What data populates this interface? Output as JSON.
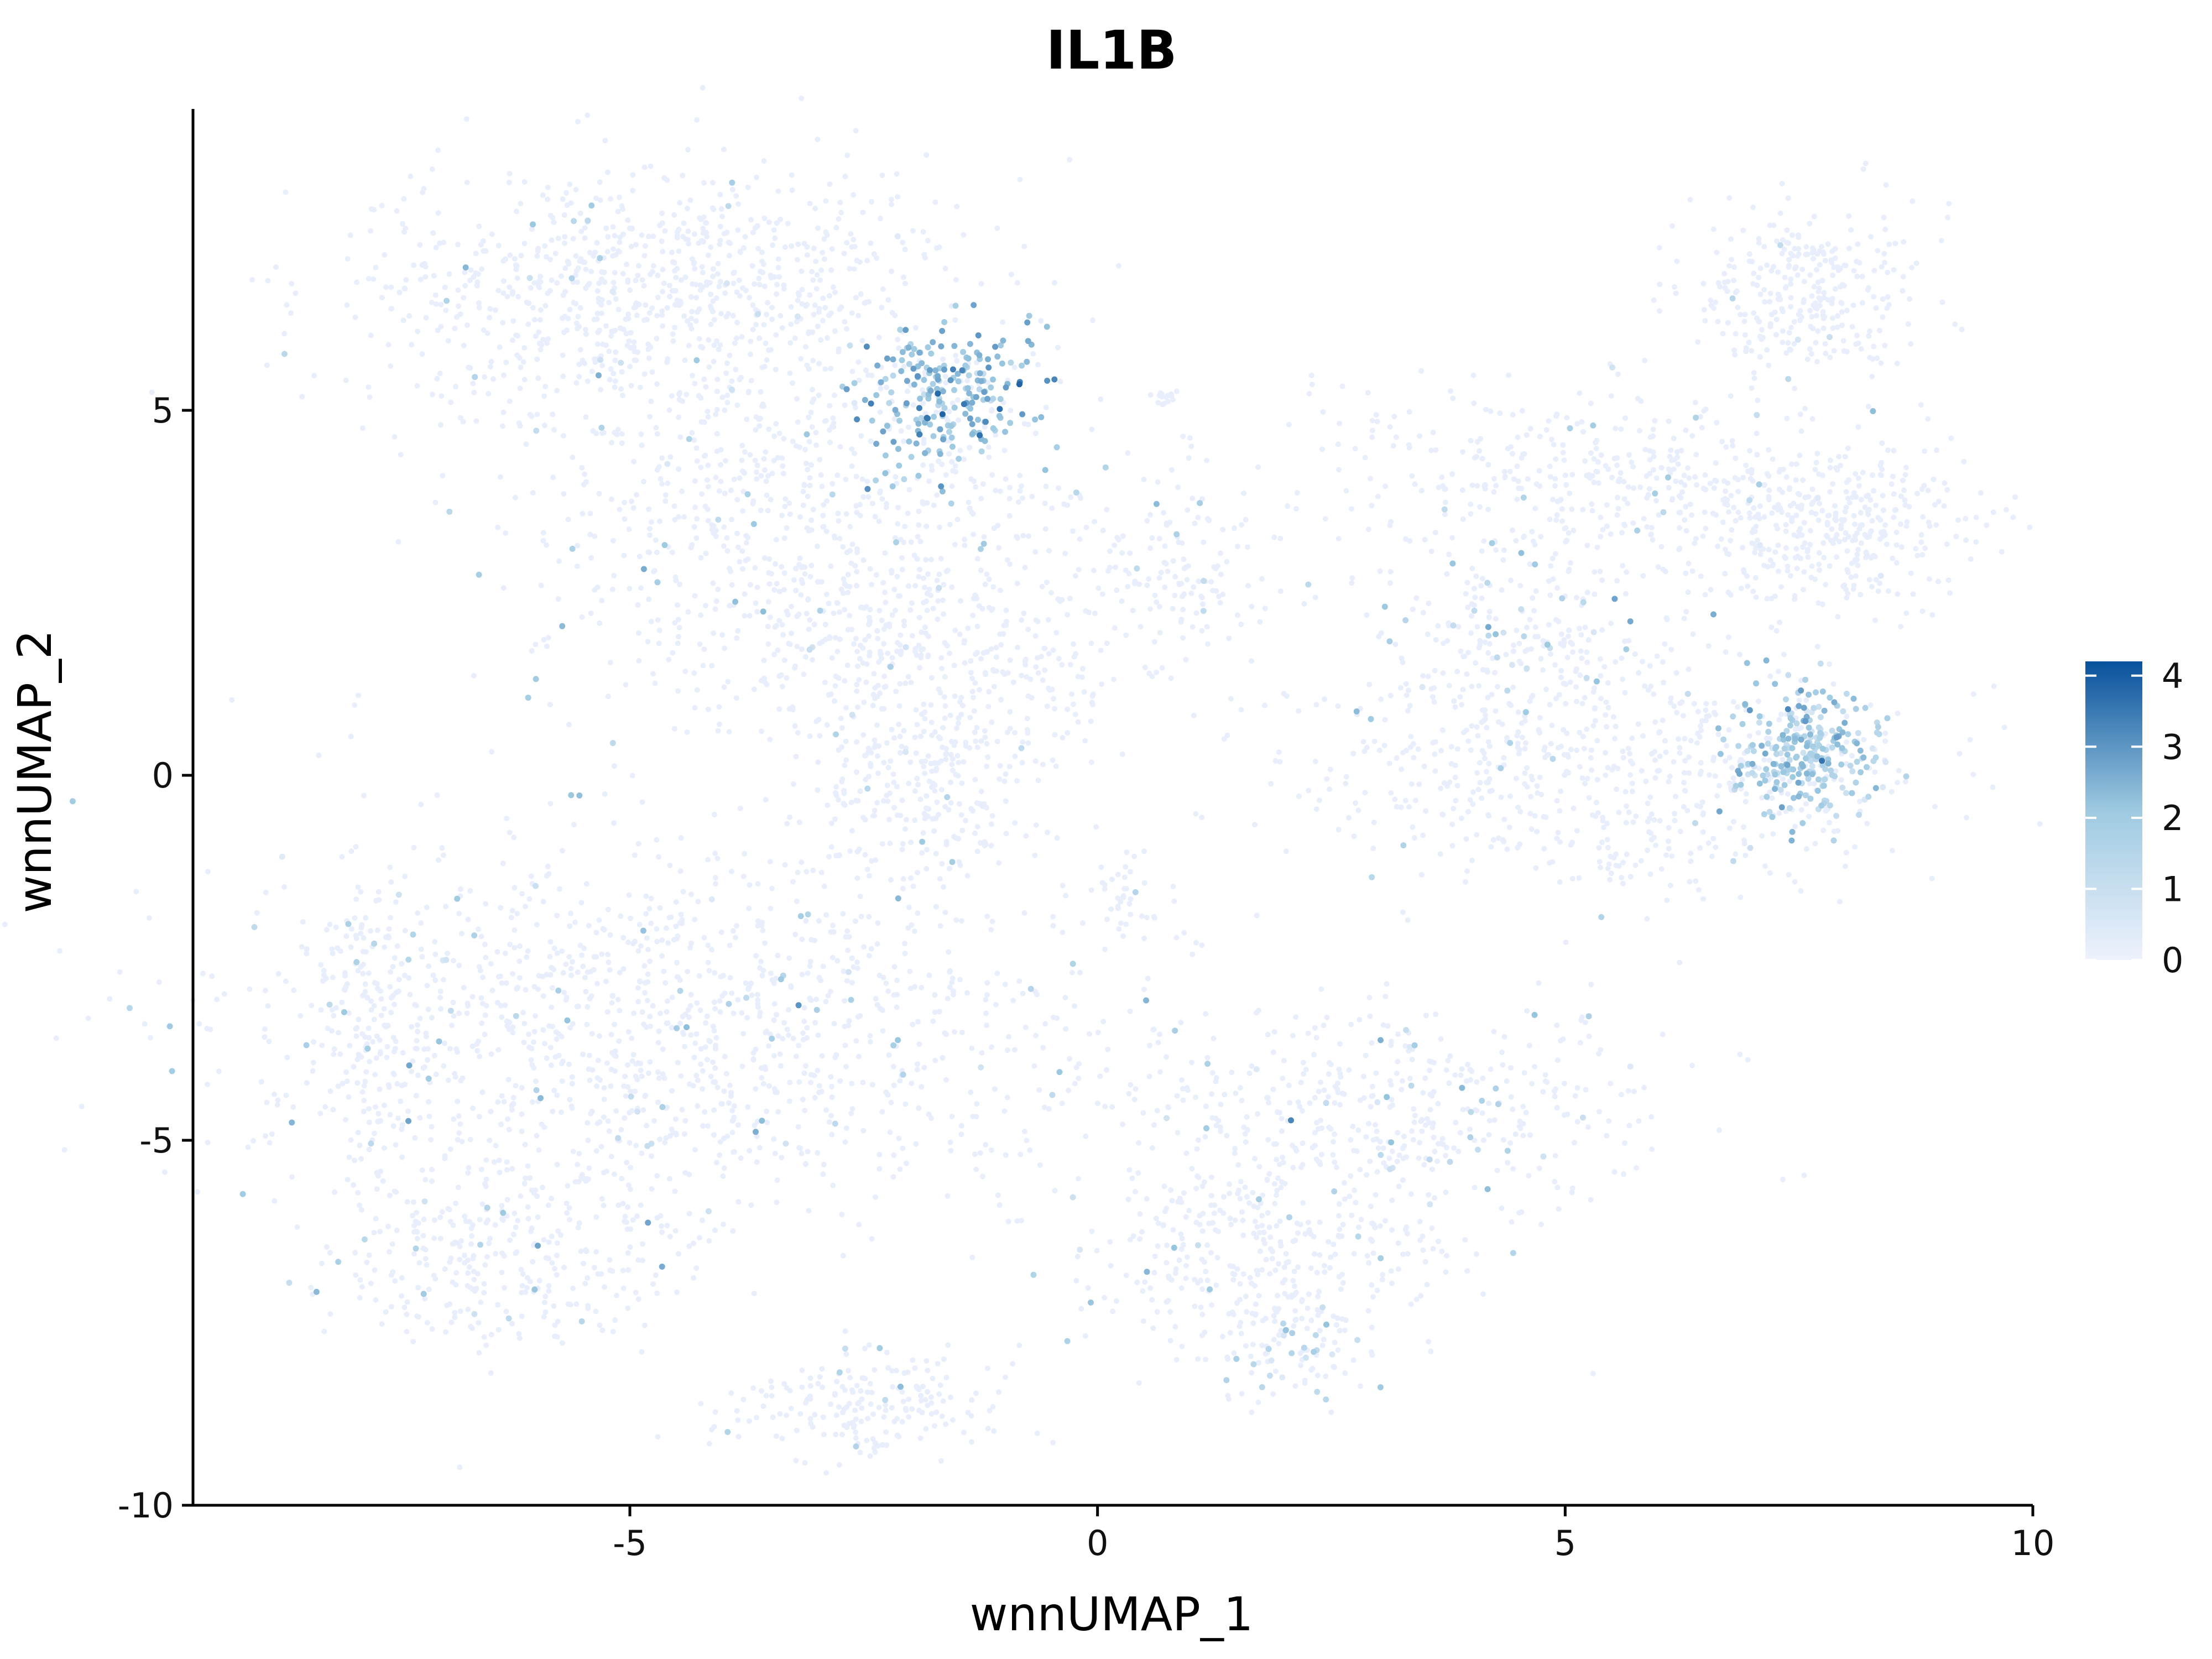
{
  "chart_data": {
    "type": "scatter",
    "title": "IL1B",
    "xlabel": "wnnUMAP_1",
    "ylabel": "wnnUMAP_2",
    "xlim": [
      -9.8,
      10
    ],
    "ylim": [
      -10.1,
      9.2
    ],
    "x_ticks": [
      -5,
      0,
      5,
      10
    ],
    "y_ticks": [
      -10,
      -5,
      0,
      5
    ],
    "x_tick_labels": [
      "-5",
      "0",
      "5",
      "10"
    ],
    "y_tick_labels": [
      "-10",
      "-5",
      "0",
      "5"
    ],
    "grid": false,
    "legend": {
      "placement": "right",
      "type": "colorbar",
      "min": 0,
      "max": 4.2,
      "ticks": [
        0,
        1,
        2,
        3,
        4
      ],
      "tick_labels": [
        "0",
        "1",
        "2",
        "3",
        "4"
      ],
      "low_color": "#eef2fd",
      "mid_color": "#9ecae1",
      "high_color": "#08519c"
    },
    "background_point_color": "#e8eefc",
    "clusters": [
      {
        "cx": -4.8,
        "cy": 6.6,
        "sx": 1.6,
        "sy": 0.9,
        "n": 900,
        "expr_frac": 0.02,
        "expr_mean": 1.4
      },
      {
        "cx": -3.0,
        "cy": 3.2,
        "sx": 1.6,
        "sy": 1.3,
        "n": 800,
        "expr_frac": 0.05,
        "expr_mean": 1.6
      },
      {
        "cx": -1.6,
        "cy": 5.2,
        "sx": 0.45,
        "sy": 0.45,
        "n": 260,
        "expr_frac": 0.85,
        "expr_mean": 2.2
      },
      {
        "cx": -1.6,
        "cy": 1.4,
        "sx": 0.9,
        "sy": 0.7,
        "n": 300,
        "expr_frac": 0.02,
        "expr_mean": 1.4
      },
      {
        "cx": -1.8,
        "cy": -0.3,
        "sx": 0.6,
        "sy": 0.6,
        "n": 200,
        "expr_frac": 0.02,
        "expr_mean": 1.4
      },
      {
        "cx": 0.9,
        "cy": 2.6,
        "sx": 0.5,
        "sy": 0.6,
        "n": 120,
        "expr_frac": 0.03,
        "expr_mean": 1.4
      },
      {
        "cx": 7.6,
        "cy": 6.6,
        "sx": 0.6,
        "sy": 0.6,
        "n": 300,
        "expr_frac": 0.01,
        "expr_mean": 1.2
      },
      {
        "cx": 5.4,
        "cy": 4.0,
        "sx": 1.5,
        "sy": 0.7,
        "n": 450,
        "expr_frac": 0.02,
        "expr_mean": 1.4
      },
      {
        "cx": 7.9,
        "cy": 3.4,
        "sx": 0.8,
        "sy": 0.6,
        "n": 350,
        "expr_frac": 0.01,
        "expr_mean": 1.2
      },
      {
        "cx": 4.5,
        "cy": 1.9,
        "sx": 0.7,
        "sy": 0.5,
        "n": 180,
        "expr_frac": 0.2,
        "expr_mean": 1.5
      },
      {
        "cx": 5.4,
        "cy": 0.0,
        "sx": 1.6,
        "sy": 0.8,
        "n": 650,
        "expr_frac": 0.03,
        "expr_mean": 1.4
      },
      {
        "cx": 7.6,
        "cy": 0.3,
        "sx": 0.4,
        "sy": 0.45,
        "n": 280,
        "expr_frac": 0.9,
        "expr_mean": 1.7
      },
      {
        "cx": -4.7,
        "cy": -3.6,
        "sx": 2.3,
        "sy": 1.3,
        "n": 1300,
        "expr_frac": 0.05,
        "expr_mean": 1.7
      },
      {
        "cx": -6.3,
        "cy": -6.6,
        "sx": 0.9,
        "sy": 0.6,
        "n": 300,
        "expr_frac": 0.06,
        "expr_mean": 1.6
      },
      {
        "cx": -2.6,
        "cy": -8.6,
        "sx": 0.7,
        "sy": 0.4,
        "n": 200,
        "expr_frac": 0.03,
        "expr_mean": 1.5
      },
      {
        "cx": 3.2,
        "cy": -4.6,
        "sx": 1.5,
        "sy": 0.7,
        "n": 450,
        "expr_frac": 0.06,
        "expr_mean": 1.5
      },
      {
        "cx": 1.8,
        "cy": -6.6,
        "sx": 1.1,
        "sy": 0.7,
        "n": 350,
        "expr_frac": 0.03,
        "expr_mean": 1.4
      },
      {
        "cx": 2.1,
        "cy": -7.9,
        "sx": 0.4,
        "sy": 0.35,
        "n": 90,
        "expr_frac": 0.25,
        "expr_mean": 1.5
      },
      {
        "cx": -7.8,
        "cy": -3.2,
        "sx": 0.25,
        "sy": 1.3,
        "n": 150,
        "expr_frac": 0.08,
        "expr_mean": 1.6
      },
      {
        "cx": 0.7,
        "cy": 5.2,
        "sx": 0.08,
        "sy": 0.05,
        "n": 15,
        "expr_frac": 0.0,
        "expr_mean": 0
      },
      {
        "cx": 0.3,
        "cy": -1.6,
        "sx": 0.2,
        "sy": 0.3,
        "n": 40,
        "expr_frac": 0.03,
        "expr_mean": 1.4
      }
    ]
  }
}
